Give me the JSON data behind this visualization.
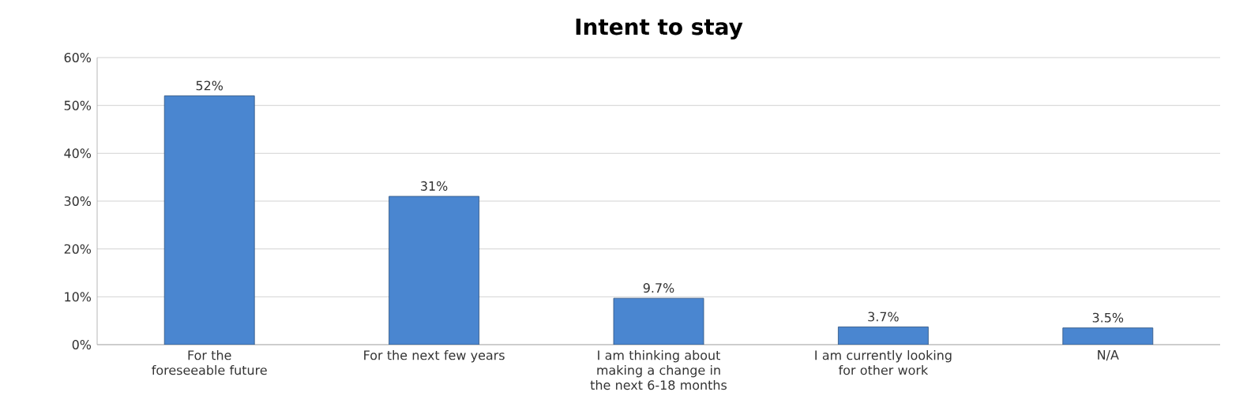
{
  "chart_data": {
    "type": "bar",
    "title": "Intent to stay",
    "categories": [
      "For the foreseeable future",
      "For the next few years",
      "I am thinking about making a change in the next 6-18 months",
      "I am currently looking for other work",
      "N/A"
    ],
    "values": [
      52,
      31,
      9.7,
      3.7,
      3.5
    ],
    "value_labels": [
      "52%",
      "31%",
      "9.7%",
      "3.7%",
      "3.5%"
    ],
    "color": "#4a86d0",
    "ylim": [
      0,
      60
    ],
    "yticks": [
      {
        "value": 0,
        "label": "0%"
      },
      {
        "value": 10,
        "label": "10%"
      },
      {
        "value": 20,
        "label": "20%"
      },
      {
        "value": 30,
        "label": "30%"
      },
      {
        "value": 40,
        "label": "40%"
      },
      {
        "value": 50,
        "label": "50%"
      },
      {
        "value": 60,
        "label": "60%"
      }
    ],
    "grid": "y"
  }
}
